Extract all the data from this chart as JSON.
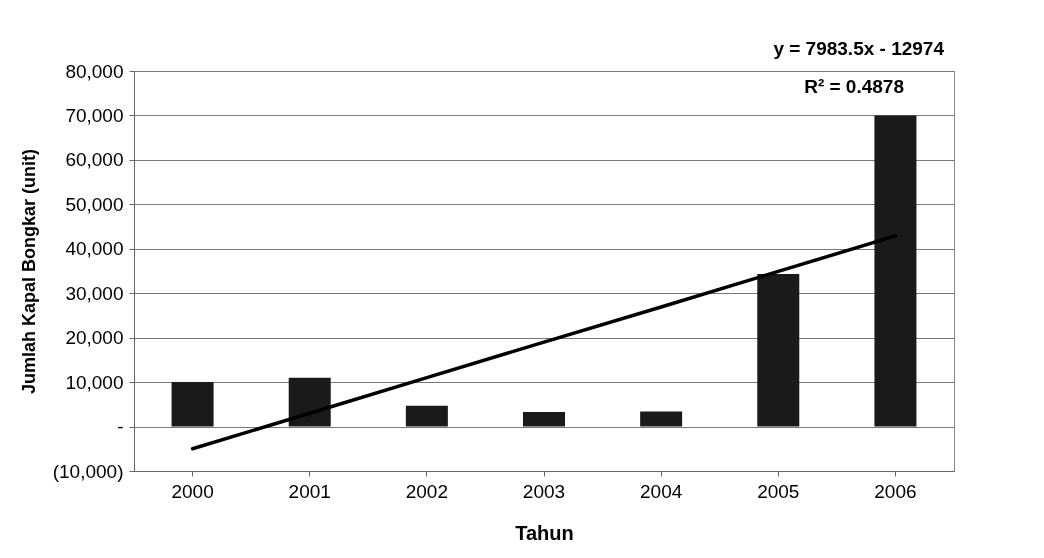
{
  "chart_data": {
    "type": "bar",
    "xlabel": "Tahun",
    "ylabel": "Jumlah Kapal Bongkar (unit)",
    "categories": [
      "2000",
      "2001",
      "2002",
      "2003",
      "2004",
      "2005",
      "2006"
    ],
    "series": [
      {
        "color": "#1a1a1a",
        "values": [
          10000,
          11000,
          4700,
          3300,
          3400,
          34300,
          70000
        ]
      },
      {
        "type": "line",
        "color": "#000000",
        "values": [
          -5000,
          3000,
          11000,
          19000,
          26900,
          34900,
          42900
        ]
      }
    ],
    "ylim": [
      -10000,
      80000
    ],
    "yticks": [
      {
        "value": -10000,
        "label": "(10,000)"
      },
      {
        "value": 0,
        "label": "-"
      },
      {
        "value": 10000,
        "label": "10,000"
      },
      {
        "value": 20000,
        "label": "20,000"
      },
      {
        "value": 30000,
        "label": "30,000"
      },
      {
        "value": 40000,
        "label": "40,000"
      },
      {
        "value": 50000,
        "label": "50,000"
      },
      {
        "value": 60000,
        "label": "60,000"
      },
      {
        "value": 70000,
        "label": "70,000"
      },
      {
        "value": 80000,
        "label": "80,000"
      }
    ],
    "grid": "y",
    "annotations": [
      "y = 7983.5x - 12974",
      "R² = 0.4878"
    ]
  }
}
